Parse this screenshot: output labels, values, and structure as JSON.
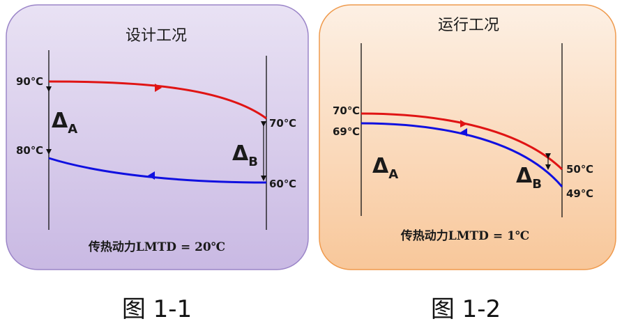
{
  "colors": {
    "hot_stream": "#e01414",
    "cold_stream": "#1010e0",
    "panel1_fill_top": "#e9e2f4",
    "panel1_fill_bottom": "#c9b9e3",
    "panel1_border": "#9b85c8",
    "panel2_fill_top": "#fdf0e4",
    "panel2_fill_bottom": "#f8c79a",
    "panel2_border": "#ef9a4d"
  },
  "figure1": {
    "title": "设计工况",
    "hot_in_temp": "90℃",
    "cold_out_temp": "80℃",
    "hot_out_temp": "70℃",
    "cold_in_temp": "60℃",
    "delta_a_symbol": "Δ",
    "delta_a_sub": "A",
    "delta_b_symbol": "Δ",
    "delta_b_sub": "B",
    "lmtd": "传热动力LMTD = 20℃",
    "caption": "图 1-1"
  },
  "figure2": {
    "title": "运行工况",
    "hot_in_temp": "70℃",
    "cold_out_temp": "69℃",
    "hot_out_temp": "50℃",
    "cold_in_temp": "49℃",
    "delta_a_symbol": "Δ",
    "delta_a_sub": "A",
    "delta_b_symbol": "Δ",
    "delta_b_sub": "B",
    "lmtd": "传热动力LMTD = 1℃",
    "caption": "图 1-2"
  }
}
